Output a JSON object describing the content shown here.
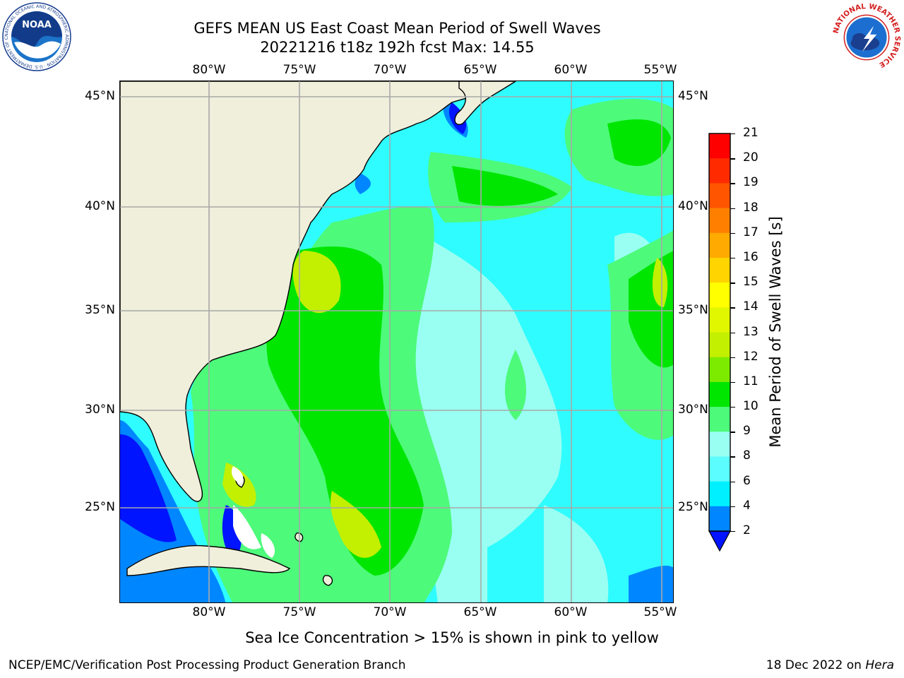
{
  "title": {
    "line1": "GEFS MEAN US East Coast Mean Period of Swell Waves",
    "line2": "20221216 t18z 192h fcst   Max: 14.55"
  },
  "axes": {
    "lon_labels": [
      "80°W",
      "75°W",
      "70°W",
      "65°W",
      "60°W",
      "55°W"
    ],
    "lat_labels": [
      "45°N",
      "40°N",
      "35°N",
      "30°N",
      "25°N"
    ],
    "lon_range": [
      -85,
      -54.5
    ],
    "lat_range": [
      20.5,
      45.8
    ]
  },
  "colorbar": {
    "label": "Mean Period of Swell Waves [s]",
    "ticks": [
      "21",
      "20",
      "19",
      "18",
      "17",
      "16",
      "15",
      "14",
      "13",
      "12",
      "11",
      "10",
      "9",
      "8",
      "6",
      "4",
      "2"
    ],
    "colors": [
      "#ff0000",
      "#ff2a00",
      "#ff5500",
      "#ff8000",
      "#ffaa00",
      "#ffd400",
      "#ffff00",
      "#e1f700",
      "#c3f000",
      "#7deb00",
      "#00e600",
      "#4dfa7a",
      "#99fff2",
      "#5cfdff",
      "#00f0ff",
      "#0087ff"
    ],
    "extend_color": "#0014ff"
  },
  "caption": "Sea Ice Concentration > 15% is shown in pink to yellow",
  "footer": {
    "left": "NCEP/EMC/Verification Post Processing Product Generation Branch",
    "right_prefix": "18 Dec 2022 on ",
    "right_host": "Hera"
  },
  "logos": {
    "left": "NOAA",
    "left_ring": "NATIONAL OCEANIC AND ATMOSPHERIC ADMINISTRATION · U.S. DEPARTMENT OF COMMERCE",
    "right_ring": "NATIONAL WEATHER SERVICE"
  }
}
